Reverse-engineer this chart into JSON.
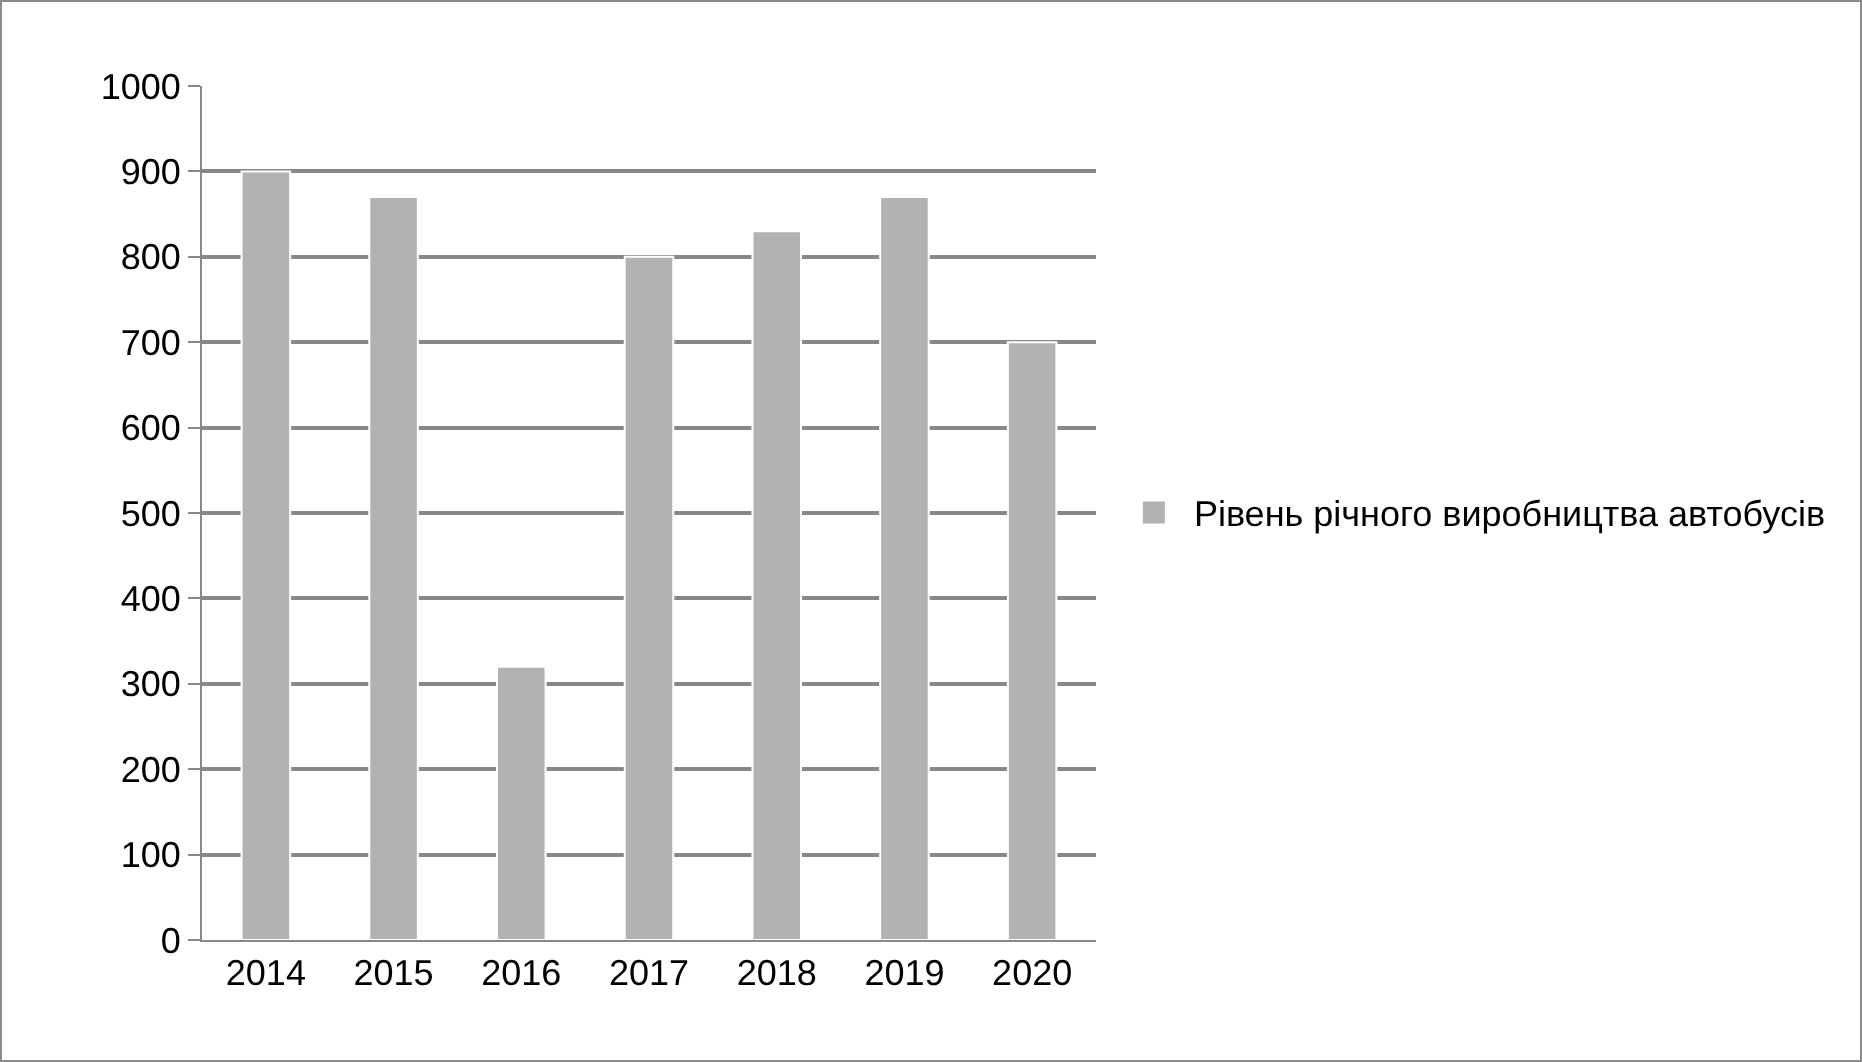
{
  "chart_data": {
    "type": "bar",
    "categories": [
      "2014",
      "2015",
      "2016",
      "2017",
      "2018",
      "2019",
      "2020"
    ],
    "series": [
      {
        "name": "Рівень річного виробництва автобусів",
        "color": "#b2b2b2",
        "values": [
          900,
          870,
          320,
          800,
          830,
          870,
          700
        ]
      }
    ],
    "ylim": [
      0,
      1000
    ],
    "yticks": [
      0,
      100,
      200,
      300,
      400,
      500,
      600,
      700,
      800,
      900,
      1000
    ],
    "grid": "y",
    "legend": "right"
  }
}
